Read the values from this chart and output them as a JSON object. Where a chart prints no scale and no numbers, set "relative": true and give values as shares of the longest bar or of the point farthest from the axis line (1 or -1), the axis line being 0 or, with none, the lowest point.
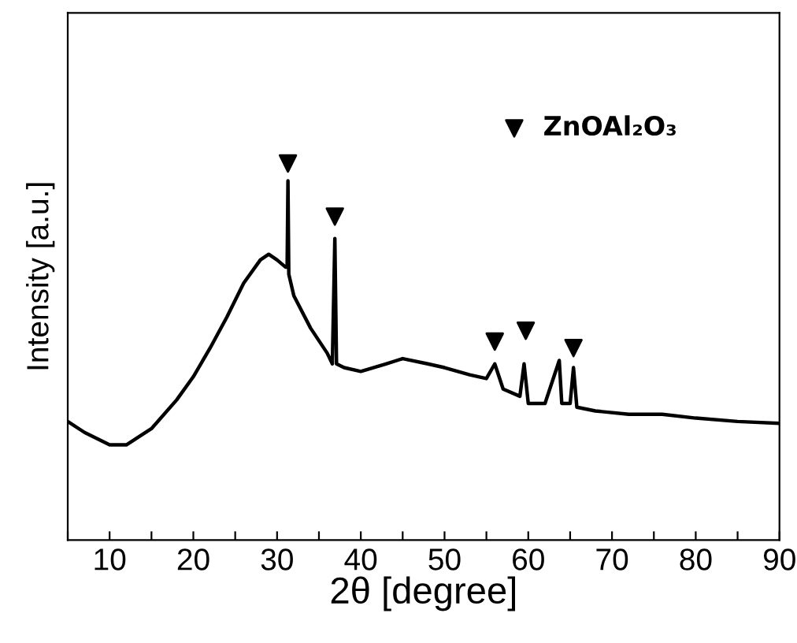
{
  "chart_data": {
    "type": "line",
    "relative": true,
    "xlabel": "2θ [degree]",
    "ylabel": "Intensity [a.u.]",
    "xlim": [
      5,
      90
    ],
    "xticks": [
      {
        "value": 5,
        "label": null
      },
      10,
      {
        "value": 15,
        "label": null
      },
      20,
      {
        "value": 25,
        "label": null
      },
      30,
      {
        "value": 35,
        "label": null
      },
      40,
      {
        "value": 45,
        "label": null
      },
      50,
      {
        "value": 55,
        "label": null
      },
      60,
      {
        "value": 65,
        "label": null
      },
      70,
      {
        "value": 75,
        "label": null
      },
      80,
      {
        "value": 85,
        "label": null
      },
      90
    ],
    "tick_labels": "x",
    "legend": "top right",
    "series": [
      {
        "color": "#000000",
        "x": [
          5,
          7,
          10,
          12,
          15,
          18,
          20,
          22,
          24,
          26,
          28,
          29,
          30,
          31,
          31.2,
          31.3,
          31.4,
          32,
          34,
          36,
          36.6,
          36.9,
          37.1,
          38,
          40,
          43,
          45,
          48,
          50,
          53,
          55,
          56,
          57,
          59,
          59.5,
          60,
          62,
          63.7,
          64,
          65,
          65.4,
          65.8,
          68,
          72,
          76,
          80,
          85,
          90
        ],
        "values": [
          0.315,
          0.286,
          0.253,
          0.253,
          0.296,
          0.372,
          0.434,
          0.51,
          0.592,
          0.682,
          0.744,
          0.759,
          0.744,
          0.725,
          0.725,
          0.954,
          0.706,
          0.649,
          0.563,
          0.496,
          0.468,
          0.801,
          0.468,
          0.458,
          0.448,
          0.468,
          0.482,
          0.468,
          0.458,
          0.439,
          0.429,
          0.468,
          0.401,
          0.382,
          0.468,
          0.363,
          0.363,
          0.477,
          0.363,
          0.363,
          0.458,
          0.353,
          0.343,
          0.334,
          0.334,
          0.324,
          0.315,
          0.31
        ]
      },
      {
        "type": "scatter",
        "name": "ZnOAl₂O₃",
        "color": "#000000",
        "marker": "triangle",
        "x": [
          31.3,
          36.9,
          56.0,
          59.7,
          65.4
        ],
        "values": [
          1.0,
          0.859,
          0.527,
          0.556,
          0.51
        ]
      }
    ]
  }
}
